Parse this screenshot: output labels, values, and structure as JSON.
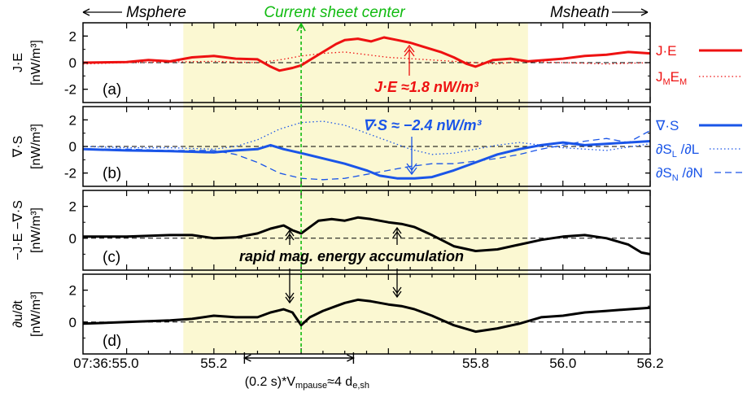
{
  "header": {
    "left_label": "Msphere",
    "center_label": "Current sheet center",
    "right_label": "Msheath"
  },
  "colors": {
    "red": "#ee1111",
    "blue": "#1a55e8",
    "green": "#11bb11",
    "black": "#000000",
    "shade": "#fbf8d2"
  },
  "shared": {
    "xlim": [
      54.9,
      56.2
    ],
    "x_ticks": [
      55.0,
      55.2,
      55.8,
      56.0,
      56.2
    ],
    "x_tick_labels": [
      "07:36:55.0",
      "55.2",
      "55.8",
      "56.0",
      "56.2"
    ],
    "shaded_interval": [
      55.13,
      55.92
    ],
    "center_time": 55.4,
    "scale_bar": {
      "range": [
        55.27,
        55.52
      ],
      "label": "(0.2 s)*V",
      "label_sub": "mpause",
      "label_rest": "≈4 d",
      "label_sub2": "e,sh"
    }
  },
  "panels_text": {
    "rapid_label": "rapid mag. energy accumulation"
  },
  "chart_data": [
    {
      "type": "line",
      "panel_label": "(a)",
      "ylabel_top": "J·E",
      "ylabel_unit": "[nW/m³]",
      "ylim": [
        -3,
        3
      ],
      "y_ticks": [
        2,
        0,
        -2
      ],
      "zero_line": "dashed",
      "annotation": "J·E ≈1.8 nW/m³",
      "legend": [
        {
          "label": "J·E",
          "style": "solid-thick"
        },
        {
          "label": "J",
          "sub": "M",
          "label2": "E",
          "sub2": "M",
          "style": "dotted"
        }
      ],
      "series": [
        {
          "name": "J·E",
          "color": "#ee1111",
          "style": "solid",
          "x": [
            54.9,
            55.0,
            55.05,
            55.1,
            55.15,
            55.2,
            55.25,
            55.3,
            55.33,
            55.35,
            55.38,
            55.4,
            55.42,
            55.45,
            55.48,
            55.5,
            55.53,
            55.56,
            55.59,
            55.62,
            55.65,
            55.68,
            55.72,
            55.75,
            55.78,
            55.8,
            55.84,
            55.88,
            55.92,
            55.96,
            56.0,
            56.05,
            56.1,
            56.15,
            56.2
          ],
          "y": [
            0.0,
            0.05,
            0.2,
            0.1,
            0.4,
            0.5,
            0.3,
            0.25,
            -0.3,
            -0.6,
            -0.4,
            -0.2,
            0.2,
            0.8,
            1.4,
            1.7,
            1.8,
            1.6,
            1.9,
            1.7,
            1.5,
            1.2,
            0.8,
            0.4,
            -0.1,
            -0.3,
            0.2,
            0.3,
            0.1,
            0.2,
            0.3,
            0.5,
            0.6,
            0.8,
            0.7
          ]
        },
        {
          "name": "JMEM",
          "color": "#ee1111",
          "style": "dotted",
          "x": [
            54.9,
            55.0,
            55.1,
            55.2,
            55.3,
            55.35,
            55.4,
            55.45,
            55.5,
            55.55,
            55.6,
            55.65,
            55.7,
            55.75,
            55.8,
            55.85,
            55.9,
            56.0,
            56.1,
            56.2
          ],
          "y": [
            -0.1,
            0.0,
            0.05,
            0.1,
            0.0,
            0.2,
            0.5,
            0.7,
            0.8,
            0.6,
            0.4,
            0.3,
            0.2,
            0.1,
            0.0,
            -0.1,
            0.1,
            0.0,
            -0.1,
            0.0
          ]
        }
      ]
    },
    {
      "type": "line",
      "panel_label": "(b)",
      "ylabel_top": "∇·S",
      "ylabel_unit": "[nW/m³]",
      "ylim": [
        -3,
        3
      ],
      "y_ticks": [
        2,
        0,
        -2
      ],
      "zero_line": "dashed",
      "annotation": "∇·S ≈ −2.4 nW/m³",
      "legend": [
        {
          "label": "∇·S",
          "style": "solid-thick"
        },
        {
          "label": "∂S",
          "sub": "L",
          "label2": " /∂L",
          "style": "dotted"
        },
        {
          "label": "∂S",
          "sub": "N",
          "label2": " /∂N",
          "style": "dashed"
        }
      ],
      "series": [
        {
          "name": "∇·S",
          "color": "#1a55e8",
          "style": "solid",
          "x": [
            54.9,
            55.0,
            55.1,
            55.15,
            55.2,
            55.25,
            55.3,
            55.33,
            55.36,
            55.4,
            55.45,
            55.5,
            55.55,
            55.58,
            55.62,
            55.66,
            55.7,
            55.75,
            55.8,
            55.85,
            55.9,
            55.95,
            56.0,
            56.05,
            56.1,
            56.15,
            56.2
          ],
          "y": [
            -0.2,
            -0.3,
            -0.35,
            -0.4,
            -0.45,
            -0.3,
            -0.2,
            0.1,
            -0.2,
            -0.5,
            -0.9,
            -1.3,
            -1.8,
            -2.2,
            -2.4,
            -2.4,
            -2.3,
            -1.8,
            -1.2,
            -0.6,
            -0.2,
            0.1,
            0.3,
            0.1,
            0.2,
            0.3,
            0.4
          ]
        },
        {
          "name": "∂SL/∂L",
          "color": "#1a55e8",
          "style": "dotted",
          "x": [
            54.9,
            55.0,
            55.1,
            55.2,
            55.25,
            55.3,
            55.35,
            55.4,
            55.45,
            55.5,
            55.55,
            55.6,
            55.65,
            55.7,
            55.75,
            55.8,
            55.85,
            55.9,
            55.95,
            56.0,
            56.1,
            56.2
          ],
          "y": [
            0.0,
            -0.1,
            -0.1,
            -0.2,
            0.0,
            0.5,
            1.3,
            1.8,
            1.9,
            1.6,
            1.0,
            0.4,
            -0.2,
            -0.6,
            -0.5,
            -0.2,
            0.1,
            0.3,
            0.1,
            -0.1,
            -0.3,
            0.2
          ]
        },
        {
          "name": "∂SN/∂N",
          "color": "#1a55e8",
          "style": "dashed",
          "x": [
            54.9,
            55.0,
            55.1,
            55.2,
            55.25,
            55.3,
            55.35,
            55.4,
            55.45,
            55.5,
            55.55,
            55.6,
            55.65,
            55.7,
            55.75,
            55.8,
            55.85,
            55.9,
            55.95,
            56.0,
            56.05,
            56.1,
            56.15,
            56.2
          ],
          "y": [
            -0.2,
            -0.2,
            -0.3,
            -0.3,
            -0.6,
            -1.2,
            -2.0,
            -2.4,
            -2.5,
            -2.4,
            -2.1,
            -1.8,
            -1.5,
            -1.3,
            -1.3,
            -1.1,
            -0.9,
            -0.6,
            -0.2,
            0.1,
            0.4,
            0.6,
            0.3,
            1.2
          ]
        }
      ]
    },
    {
      "type": "line",
      "panel_label": "(c)",
      "ylabel_top": "−J·E −∇·S",
      "ylabel_unit": "[nW/m³]",
      "ylim": [
        -2,
        3
      ],
      "y_ticks": [
        2,
        0
      ],
      "zero_line": "dashed",
      "series": [
        {
          "name": "−J·E −∇·S",
          "color": "#000000",
          "style": "solid",
          "x": [
            54.9,
            55.0,
            55.1,
            55.15,
            55.2,
            55.25,
            55.3,
            55.33,
            55.36,
            55.38,
            55.4,
            55.42,
            55.44,
            55.47,
            55.5,
            55.53,
            55.56,
            55.6,
            55.63,
            55.66,
            55.7,
            55.75,
            55.8,
            55.85,
            55.9,
            55.95,
            56.0,
            56.05,
            56.1,
            56.15,
            56.18,
            56.2
          ],
          "y": [
            0.1,
            0.1,
            0.2,
            0.2,
            0.0,
            0.05,
            0.3,
            0.6,
            0.8,
            0.5,
            0.3,
            0.7,
            1.1,
            1.2,
            1.1,
            1.3,
            1.2,
            1.0,
            0.9,
            0.7,
            0.2,
            -0.5,
            -0.8,
            -0.7,
            -0.4,
            -0.1,
            0.1,
            0.2,
            0.0,
            -0.4,
            -0.9,
            -1.0
          ]
        }
      ]
    },
    {
      "type": "line",
      "panel_label": "(d)",
      "ylabel_top": "∂u/∂t",
      "ylabel_unit": "[nW/m³]",
      "ylim": [
        -2,
        3
      ],
      "y_ticks": [
        2,
        0
      ],
      "zero_line": "dashed",
      "series": [
        {
          "name": "∂u/∂t",
          "color": "#000000",
          "style": "solid",
          "x": [
            54.9,
            55.0,
            55.1,
            55.15,
            55.2,
            55.25,
            55.3,
            55.33,
            55.36,
            55.38,
            55.4,
            55.42,
            55.45,
            55.48,
            55.5,
            55.53,
            55.56,
            55.6,
            55.63,
            55.66,
            55.7,
            55.75,
            55.8,
            55.85,
            55.9,
            55.95,
            56.0,
            56.05,
            56.1,
            56.15,
            56.2
          ],
          "y": [
            -0.1,
            0.0,
            0.1,
            0.2,
            0.4,
            0.3,
            0.3,
            0.6,
            0.8,
            0.6,
            -0.2,
            0.3,
            0.7,
            1.0,
            1.2,
            1.4,
            1.3,
            1.1,
            1.0,
            0.8,
            0.4,
            -0.2,
            -0.6,
            -0.4,
            -0.1,
            0.3,
            0.4,
            0.6,
            0.7,
            0.8,
            0.9
          ]
        }
      ]
    }
  ]
}
